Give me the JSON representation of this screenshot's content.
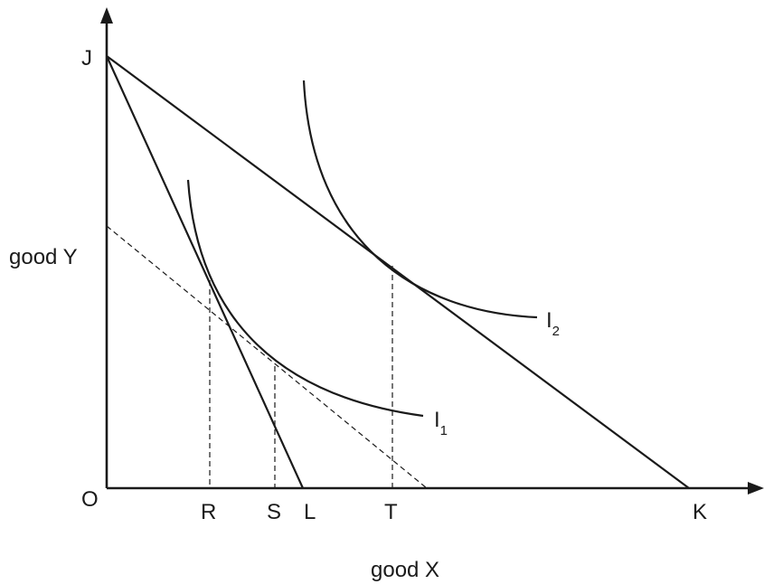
{
  "axes": {
    "y_label": "good Y",
    "x_label": "good X",
    "origin": "O"
  },
  "points": {
    "J": "J",
    "R": "R",
    "S": "S",
    "L": "L",
    "T": "T",
    "K": "K"
  },
  "curves": {
    "i1": {
      "letter": "I",
      "subscript": "1"
    },
    "i2": {
      "letter": "I",
      "subscript": "2"
    }
  }
}
